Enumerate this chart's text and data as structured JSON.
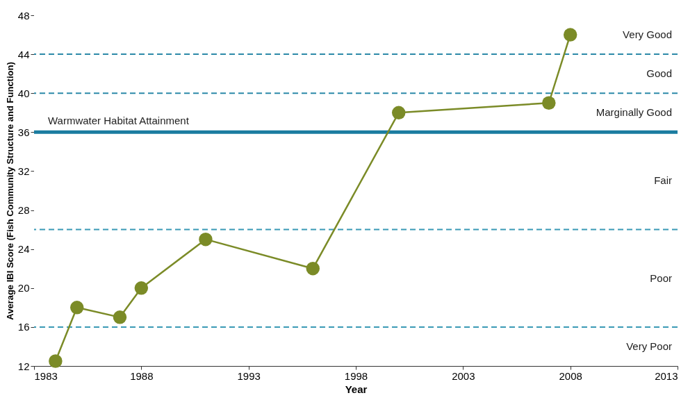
{
  "chart_data": {
    "type": "line",
    "xlabel": "Year",
    "ylabel": "Average IBI Score  (Fish Community Structure and Function)",
    "x": [
      1984,
      1985,
      1987,
      1988,
      1991,
      1996,
      2000,
      2007,
      2008
    ],
    "series": [
      {
        "color": "#7b8b27",
        "values": [
          12.5,
          18,
          17,
          20,
          25,
          22,
          38,
          39,
          46
        ]
      }
    ],
    "xlim": [
      1983,
      2013
    ],
    "xticks": [
      1983,
      1988,
      1993,
      1998,
      2003,
      2008,
      2013
    ],
    "ylim": [
      12,
      48
    ],
    "yticks": [
      12,
      16,
      20,
      24,
      28,
      32,
      36,
      40,
      44,
      48
    ],
    "marker": "circle",
    "line_style": "solid",
    "grid": false,
    "ref_lines": [
      {
        "axis": "y",
        "value": 44,
        "color": "#2b89a8",
        "line_style": "dashed"
      },
      {
        "axis": "y",
        "value": 40,
        "color": "#2b89a8",
        "line_style": "dashed"
      },
      {
        "axis": "y",
        "value": 36,
        "color": "#1a7ca0",
        "line_style": "solid",
        "label": "Warmwater Habitat Attainment"
      },
      {
        "axis": "y",
        "value": 26,
        "color": "#3a9ab5",
        "line_style": "dashed"
      },
      {
        "axis": "y",
        "value": 16,
        "color": "#3a9ab5",
        "line_style": "dashed"
      }
    ],
    "bands": [
      {
        "axis": "y",
        "from": 44,
        "to": 48,
        "label": "Very Good",
        "color": "#ffffff"
      },
      {
        "axis": "y",
        "from": 40,
        "to": 44,
        "label": "Good",
        "color": "#ffffff"
      },
      {
        "axis": "y",
        "from": 36,
        "to": 40,
        "label": "Marginally Good",
        "color": "#ffffff"
      },
      {
        "axis": "y",
        "from": 26,
        "to": 36,
        "label": "Fair",
        "color": "#ffffff"
      },
      {
        "axis": "y",
        "from": 16,
        "to": 26,
        "label": "Poor",
        "color": "#ffffff"
      },
      {
        "axis": "y",
        "from": 12,
        "to": 16,
        "label": "Very Poor",
        "color": "#ffffff"
      }
    ]
  }
}
